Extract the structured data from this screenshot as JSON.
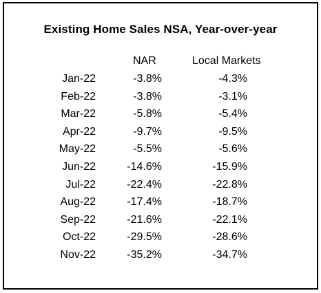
{
  "title": "Existing Home Sales NSA, Year-over-year",
  "headers": {
    "nar": "NAR",
    "local": "Local Markets"
  },
  "rows": [
    {
      "month": "Jan-22",
      "nar": "-3.8%",
      "local": "-4.3%"
    },
    {
      "month": "Feb-22",
      "nar": "-3.8%",
      "local": "-3.1%"
    },
    {
      "month": "Mar-22",
      "nar": "-5.8%",
      "local": "-5.4%"
    },
    {
      "month": "Apr-22",
      "nar": "-9.7%",
      "local": "-9.5%"
    },
    {
      "month": "May-22",
      "nar": "-5.5%",
      "local": "-5.6%"
    },
    {
      "month": "Jun-22",
      "nar": "-14.6%",
      "local": "-15.9%"
    },
    {
      "month": "Jul-22",
      "nar": "-22.4%",
      "local": "-22.8%"
    },
    {
      "month": "Aug-22",
      "nar": "-17.4%",
      "local": "-18.7%"
    },
    {
      "month": "Sep-22",
      "nar": "-21.6%",
      "local": "-22.1%"
    },
    {
      "month": "Oct-22",
      "nar": "-29.5%",
      "local": "-28.6%"
    },
    {
      "month": "Nov-22",
      "nar": "-35.2%",
      "local": "-34.7%"
    }
  ],
  "chart_data": {
    "type": "table",
    "title": "Existing Home Sales NSA, Year-over-year",
    "columns": [
      "",
      "NAR",
      "Local Markets"
    ],
    "categories": [
      "Jan-22",
      "Feb-22",
      "Mar-22",
      "Apr-22",
      "May-22",
      "Jun-22",
      "Jul-22",
      "Aug-22",
      "Sep-22",
      "Oct-22",
      "Nov-22"
    ],
    "series": [
      {
        "name": "NAR",
        "values": [
          -3.8,
          -3.8,
          -5.8,
          -9.7,
          -5.5,
          -14.6,
          -22.4,
          -17.4,
          -21.6,
          -29.5,
          -35.2
        ]
      },
      {
        "name": "Local Markets",
        "values": [
          -4.3,
          -3.1,
          -5.4,
          -9.5,
          -5.6,
          -15.9,
          -22.8,
          -18.7,
          -22.1,
          -28.6,
          -34.7
        ]
      }
    ]
  }
}
